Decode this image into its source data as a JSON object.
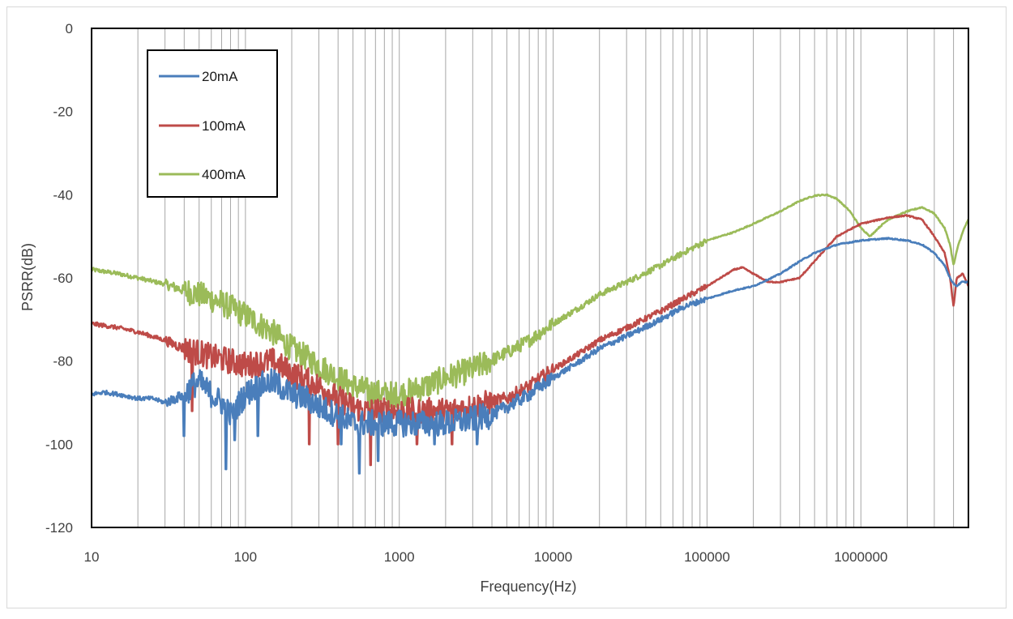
{
  "chart_data": {
    "type": "line",
    "title": "",
    "xlabel": "Frequency(Hz)",
    "ylabel": "PSRR(dB)",
    "x_scale": "log",
    "xlim": [
      10,
      5000000
    ],
    "ylim": [
      -120,
      0
    ],
    "x_ticks": [
      10,
      100,
      1000,
      10000,
      100000,
      1000000
    ],
    "x_tick_labels": [
      "10",
      "100",
      "1000",
      "10000",
      "100000",
      "1000000"
    ],
    "y_ticks": [
      0,
      -20,
      -40,
      -60,
      -80,
      -100,
      -120
    ],
    "y_tick_labels": [
      "0",
      "-20",
      "-40",
      "-60",
      "-80",
      "-100",
      "-120"
    ],
    "grid": {
      "x_major": true,
      "x_minor": true,
      "y_major": false
    },
    "legend": {
      "placement": "top-left"
    },
    "series": [
      {
        "name": "20mA",
        "color": "#4a7ebb",
        "points": [
          [
            10,
            -88
          ],
          [
            12,
            -87.5
          ],
          [
            15,
            -88
          ],
          [
            20,
            -89
          ],
          [
            25,
            -89
          ],
          [
            30,
            -90
          ],
          [
            35,
            -89
          ],
          [
            40,
            -88
          ],
          [
            45,
            -86
          ],
          [
            50,
            -85
          ],
          [
            60,
            -88
          ],
          [
            70,
            -90
          ],
          [
            80,
            -93
          ],
          [
            100,
            -88
          ],
          [
            120,
            -86
          ],
          [
            150,
            -85
          ],
          [
            200,
            -88
          ],
          [
            250,
            -89
          ],
          [
            300,
            -91
          ],
          [
            400,
            -93
          ],
          [
            500,
            -95
          ],
          [
            600,
            -95
          ],
          [
            700,
            -95
          ],
          [
            800,
            -95
          ],
          [
            1000,
            -95
          ],
          [
            1500,
            -95
          ],
          [
            2000,
            -95
          ],
          [
            3000,
            -94
          ],
          [
            4000,
            -93
          ],
          [
            5000,
            -91
          ],
          [
            7000,
            -88
          ],
          [
            10000,
            -84
          ],
          [
            15000,
            -80
          ],
          [
            20000,
            -77
          ],
          [
            30000,
            -74
          ],
          [
            50000,
            -70
          ],
          [
            70000,
            -67
          ],
          [
            100000,
            -65
          ],
          [
            150000,
            -63
          ],
          [
            200000,
            -62
          ],
          [
            300000,
            -59
          ],
          [
            400000,
            -56
          ],
          [
            500000,
            -54
          ],
          [
            700000,
            -52
          ],
          [
            1000000,
            -51
          ],
          [
            1500000,
            -50.5
          ],
          [
            2000000,
            -51
          ],
          [
            2500000,
            -52
          ],
          [
            3000000,
            -54
          ],
          [
            3500000,
            -57
          ],
          [
            3900000,
            -61
          ],
          [
            4200000,
            -62
          ],
          [
            4500000,
            -61
          ],
          [
            5000000,
            -61
          ]
        ],
        "dips": [
          [
            75,
            -106
          ],
          [
            85,
            -99
          ],
          [
            420,
            -100
          ],
          [
            550,
            -107
          ],
          [
            730,
            -104
          ],
          [
            1700,
            -100
          ],
          [
            3200,
            -100
          ],
          [
            40,
            -98
          ],
          [
            120,
            -98
          ]
        ]
      },
      {
        "name": "100mA",
        "color": "#be4b48",
        "points": [
          [
            10,
            -71
          ],
          [
            15,
            -72
          ],
          [
            20,
            -73
          ],
          [
            30,
            -75
          ],
          [
            40,
            -77
          ],
          [
            50,
            -78
          ],
          [
            60,
            -79
          ],
          [
            80,
            -80
          ],
          [
            100,
            -81
          ],
          [
            150,
            -80
          ],
          [
            200,
            -83
          ],
          [
            300,
            -86
          ],
          [
            400,
            -89
          ],
          [
            500,
            -91
          ],
          [
            600,
            -92
          ],
          [
            800,
            -92
          ],
          [
            1000,
            -92
          ],
          [
            1500,
            -92
          ],
          [
            2000,
            -92
          ],
          [
            3000,
            -91
          ],
          [
            5000,
            -89
          ],
          [
            7000,
            -86
          ],
          [
            10000,
            -82
          ],
          [
            15000,
            -78
          ],
          [
            20000,
            -75
          ],
          [
            30000,
            -72
          ],
          [
            50000,
            -68
          ],
          [
            70000,
            -65
          ],
          [
            100000,
            -62
          ],
          [
            150000,
            -58
          ],
          [
            170000,
            -57.5
          ],
          [
            200000,
            -59
          ],
          [
            250000,
            -61
          ],
          [
            300000,
            -61
          ],
          [
            400000,
            -60
          ],
          [
            500000,
            -56
          ],
          [
            700000,
            -50
          ],
          [
            1000000,
            -47
          ],
          [
            1500000,
            -45.5
          ],
          [
            2000000,
            -45
          ],
          [
            2500000,
            -46
          ],
          [
            3000000,
            -50
          ],
          [
            3500000,
            -54
          ],
          [
            3800000,
            -60
          ],
          [
            4000000,
            -67
          ],
          [
            4200000,
            -60
          ],
          [
            4600000,
            -59
          ],
          [
            5000000,
            -62
          ]
        ],
        "dips": [
          [
            260,
            -100
          ],
          [
            400,
            -100
          ],
          [
            650,
            -105
          ],
          [
            1300,
            -100
          ],
          [
            2200,
            -100
          ],
          [
            45,
            -92
          ]
        ]
      },
      {
        "name": "400mA",
        "color": "#9bbb59",
        "points": [
          [
            10,
            -58
          ],
          [
            15,
            -59
          ],
          [
            20,
            -60
          ],
          [
            30,
            -61.5
          ],
          [
            40,
            -63
          ],
          [
            50,
            -64
          ],
          [
            70,
            -66
          ],
          [
            100,
            -69
          ],
          [
            150,
            -73
          ],
          [
            200,
            -77
          ],
          [
            300,
            -81
          ],
          [
            400,
            -84
          ],
          [
            500,
            -86
          ],
          [
            600,
            -87
          ],
          [
            800,
            -88
          ],
          [
            1000,
            -88
          ],
          [
            1500,
            -86
          ],
          [
            2000,
            -84
          ],
          [
            3000,
            -82
          ],
          [
            5000,
            -78
          ],
          [
            7000,
            -75
          ],
          [
            10000,
            -71
          ],
          [
            15000,
            -67
          ],
          [
            20000,
            -64
          ],
          [
            30000,
            -61
          ],
          [
            50000,
            -57
          ],
          [
            70000,
            -54
          ],
          [
            100000,
            -51
          ],
          [
            150000,
            -49
          ],
          [
            200000,
            -47
          ],
          [
            300000,
            -44
          ],
          [
            400000,
            -41.5
          ],
          [
            500000,
            -40.2
          ],
          [
            600000,
            -40
          ],
          [
            700000,
            -41
          ],
          [
            850000,
            -44
          ],
          [
            1000000,
            -48
          ],
          [
            1150000,
            -50
          ],
          [
            1300000,
            -48
          ],
          [
            1500000,
            -46
          ],
          [
            2000000,
            -44
          ],
          [
            2500000,
            -43
          ],
          [
            3000000,
            -44.5
          ],
          [
            3500000,
            -48
          ],
          [
            3800000,
            -52
          ],
          [
            4000000,
            -57
          ],
          [
            4300000,
            -52
          ],
          [
            4700000,
            -48
          ],
          [
            5000000,
            -46
          ]
        ],
        "dips": [
          [
            650,
            -92
          ],
          [
            900,
            -91
          ],
          [
            1200,
            -90
          ]
        ]
      }
    ]
  }
}
